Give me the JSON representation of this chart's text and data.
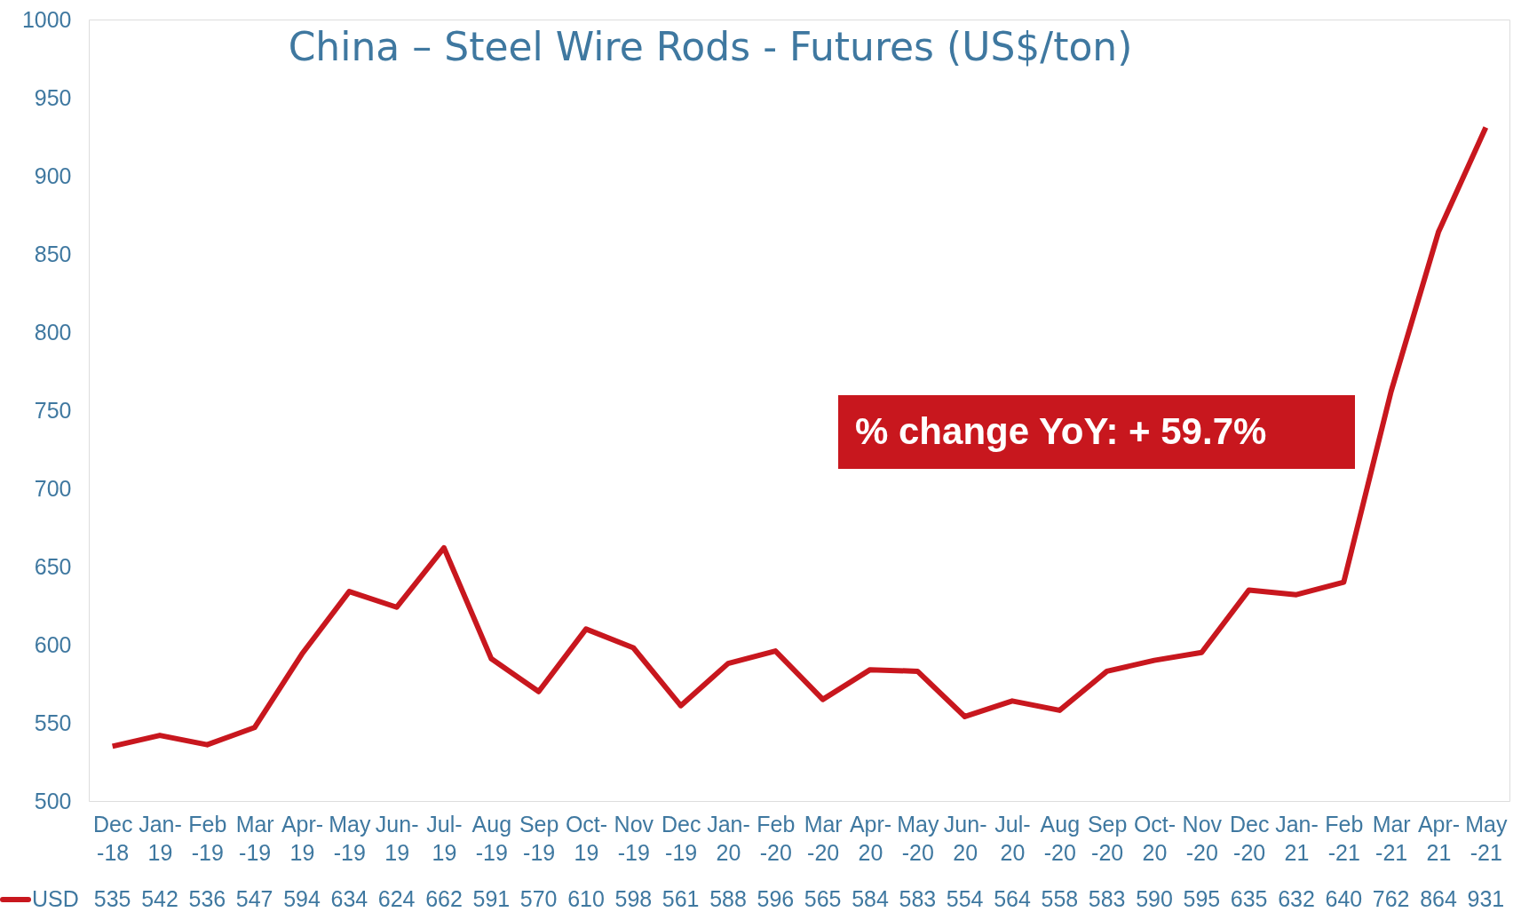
{
  "chart_data": {
    "type": "line",
    "title": "China – Steel Wire Rods - Futures (US$/ton)",
    "categories": [
      "Dec -18",
      "Jan- 19",
      "Feb -19",
      "Mar -19",
      "Apr- 19",
      "May -19",
      "Jun- 19",
      "Jul- 19",
      "Aug -19",
      "Sep -19",
      "Oct- 19",
      "Nov -19",
      "Dec -19",
      "Jan- 20",
      "Feb -20",
      "Mar -20",
      "Apr- 20",
      "May -20",
      "Jun- 20",
      "Jul- 20",
      "Aug -20",
      "Sep -20",
      "Oct- 20",
      "Nov -20",
      "Dec -20",
      "Jan- 21",
      "Feb -21",
      "Mar -21",
      "Apr- 21",
      "May -21"
    ],
    "series": [
      {
        "name": "USD",
        "color": "#c8171e",
        "values": [
          535,
          542,
          536,
          547,
          594,
          634,
          624,
          662,
          591,
          570,
          610,
          598,
          561,
          588,
          596,
          565,
          584,
          583,
          554,
          564,
          558,
          583,
          590,
          595,
          635,
          632,
          640,
          762,
          864,
          931
        ]
      }
    ],
    "ylim": [
      500,
      1000
    ],
    "yticks": [
      500,
      550,
      600,
      650,
      700,
      750,
      800,
      850,
      900,
      950,
      1000
    ],
    "grid": false,
    "legend": "bottom",
    "marker": "none",
    "line_style": "solid",
    "data_labels": true,
    "annotations": [
      "% change YoY: + 59.7%"
    ]
  }
}
